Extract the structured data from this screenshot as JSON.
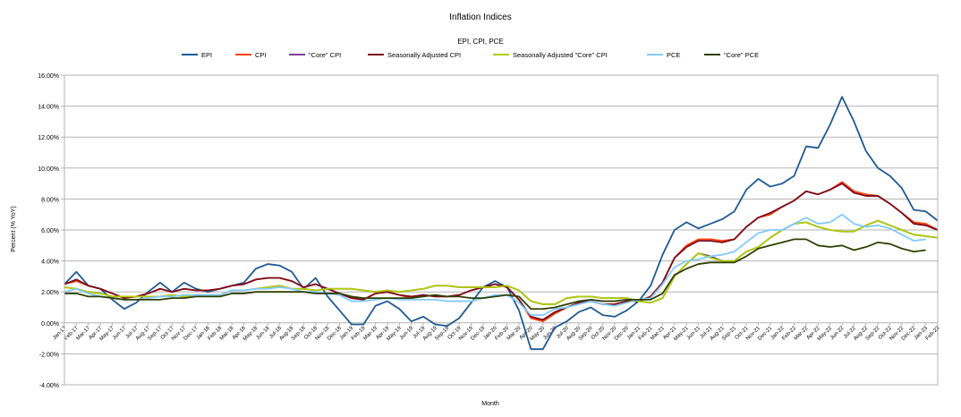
{
  "chart_data": {
    "type": "line",
    "title": "Inflation Indices",
    "subtitle": "EPI, CPI, PCE",
    "xlabel": "Month",
    "ylabel": "Percent (% YoY)",
    "ylim": [
      -4,
      16
    ],
    "yticks": [
      "-4.00%",
      "-2.00%",
      "0.00%",
      "2.00%",
      "4.00%",
      "6.00%",
      "8.00%",
      "10.00%",
      "12.00%",
      "14.00%",
      "16.00%"
    ],
    "grid": true,
    "legend_position": "top",
    "categories": [
      "Jan-17",
      "Feb-17",
      "Mar-17",
      "Apr-17",
      "May-17",
      "Jun-17",
      "Jul-17",
      "Aug-17",
      "Sep-17",
      "Oct-17",
      "Nov-17",
      "Dec-17",
      "Jan-18",
      "Feb-18",
      "Mar-18",
      "Apr-18",
      "May-18",
      "Jun-18",
      "Jul-18",
      "Aug-18",
      "Sep-18",
      "Oct-18",
      "Nov-18",
      "Dec-18",
      "Jan-19",
      "Feb-19",
      "Mar-19",
      "Apr-19",
      "May-19",
      "Jun-19",
      "Jul-19",
      "Aug-19",
      "Sep-19",
      "Oct-19",
      "Nov-19",
      "Dec-19",
      "Jan-20",
      "Feb-20",
      "Mar-20",
      "Apr-20",
      "May-20",
      "Jun-20",
      "Jul-20",
      "Aug-20",
      "Sep-20",
      "Oct-20",
      "Nov-20",
      "Dec-20",
      "Jan-21",
      "Feb-21",
      "Mar-21",
      "Apr-21",
      "May-21",
      "Jun-21",
      "Jul-21",
      "Aug-21",
      "Sep-21",
      "Oct-21",
      "Nov-21",
      "Dec-21",
      "Jan-22",
      "Feb-22",
      "Mar-22",
      "Apr-22",
      "May-22",
      "Jun-22",
      "Jul-22",
      "Aug-22",
      "Sep-22",
      "Oct-22",
      "Nov-22",
      "Dec-22",
      "Jan-23",
      "Feb-23"
    ],
    "x_tick_labels": [
      "Jan-17",
      "Feb-17",
      "Mar-17",
      "Apr-17",
      "May-17",
      "Jun-17",
      "Jul-17",
      "Aug-17",
      "Sep-17",
      "Oct-17",
      "Nov-17",
      "Dec-17",
      "Jan-18",
      "Feb-18",
      "Mar-18",
      "Apr-18",
      "May-18",
      "Jun-18",
      "Jul-18",
      "Aug-18",
      "Sep-18",
      "Oct-18",
      "Nov-18",
      "Dec-18",
      "Jan-19",
      "Feb-19",
      "Mar-19",
      "Apr-19",
      "May-19",
      "Jun-19",
      "Jul-19",
      "Aug-19",
      "Sep-19",
      "Oct-19",
      "Nov-19",
      "Dec-19",
      "Jan-20",
      "Feb-20",
      "Mar-20",
      "Apr-20",
      "May-20",
      "Jun-20",
      "Jul-20",
      "Aug-20",
      "Sep-20",
      "Oct-20",
      "Nov-20",
      "Dec-20",
      "Jan-21",
      "Feb-21",
      "Mar-21",
      "Apr-21",
      "May-21",
      "Jun-21",
      "Jul-21",
      "Aug-21",
      "Sep-21",
      "Oct-21",
      "Nov-21",
      "Dec-21",
      "Jan-22",
      "Feb-22",
      "Mar-22",
      "Apr-22",
      "May-22",
      "Jun-22",
      "Jul-22",
      "Aug-22",
      "Sep-22",
      "Oct-22",
      "Nov-22",
      "Dec-22",
      "Jan-23",
      "Feb-23"
    ],
    "series": [
      {
        "name": "EPI",
        "color": "#1f5a96",
        "values": [
          2.5,
          3.3,
          2.4,
          2.2,
          1.5,
          0.9,
          1.3,
          2.0,
          2.6,
          2.0,
          2.6,
          2.2,
          2.0,
          2.2,
          2.4,
          2.6,
          3.5,
          3.8,
          3.7,
          3.3,
          2.2,
          2.9,
          1.7,
          0.8,
          -0.1,
          -0.1,
          1.1,
          1.4,
          0.9,
          0.1,
          0.4,
          -0.1,
          -0.2,
          0.3,
          1.3,
          2.3,
          2.7,
          2.3,
          0.8,
          -1.7,
          -1.7,
          -0.3,
          0.1,
          0.7,
          1.0,
          0.5,
          0.4,
          0.8,
          1.4,
          2.4,
          4.4,
          6.0,
          6.5,
          6.1,
          6.4,
          6.7,
          7.2,
          8.6,
          9.3,
          8.8,
          9.0,
          9.5,
          11.4,
          11.3,
          12.8,
          14.6,
          13.0,
          11.1,
          10.0,
          9.5,
          8.7,
          7.3,
          7.2,
          6.6
        ]
      },
      {
        "name": "CPI",
        "color": "#ff420e",
        "values": [
          2.5,
          2.7,
          2.4,
          2.2,
          1.9,
          1.6,
          1.7,
          1.9,
          2.2,
          2.0,
          2.2,
          2.1,
          2.1,
          2.2,
          2.4,
          2.5,
          2.8,
          2.9,
          2.9,
          2.7,
          2.3,
          2.5,
          2.2,
          1.9,
          1.6,
          1.5,
          1.9,
          2.0,
          1.8,
          1.6,
          1.8,
          1.7,
          1.7,
          1.8,
          2.1,
          2.3,
          2.5,
          2.3,
          1.5,
          0.3,
          0.1,
          0.6,
          1.0,
          1.3,
          1.4,
          1.2,
          1.2,
          1.4,
          1.4,
          1.7,
          2.6,
          4.2,
          5.0,
          5.4,
          5.4,
          5.3,
          5.4,
          6.2,
          6.8,
          7.0,
          7.5,
          7.9,
          8.5,
          8.3,
          8.6,
          9.1,
          8.5,
          8.3,
          8.2,
          7.7,
          7.1,
          6.5,
          6.4,
          6.0
        ]
      },
      {
        "name": "\"Core\" CPI",
        "color": "#7e3f98",
        "values": [
          2.3,
          2.2,
          2.0,
          1.9,
          1.7,
          1.7,
          1.7,
          1.7,
          1.7,
          1.8,
          1.7,
          1.8,
          1.8,
          1.8,
          2.1,
          2.1,
          2.2,
          2.3,
          2.4,
          2.2,
          2.2,
          2.1,
          2.2,
          2.2,
          2.2,
          2.1,
          2.0,
          2.1,
          2.0,
          2.1,
          2.2,
          2.4,
          2.4,
          2.3,
          2.3,
          2.3,
          2.3,
          2.4,
          2.1,
          1.4,
          1.2,
          1.2,
          1.6,
          1.7,
          1.7,
          1.6,
          1.6,
          1.6,
          1.4,
          1.3,
          1.6,
          3.0,
          3.8,
          4.5,
          4.3,
          4.0,
          4.0,
          4.6,
          4.9,
          5.5,
          6.0,
          6.4,
          6.5,
          6.2,
          6.0,
          5.9,
          5.9,
          6.3,
          6.6,
          6.3,
          6.0,
          5.7,
          5.6,
          5.5
        ]
      },
      {
        "name": "Seasonally Adjusted CPI",
        "color": "#7b0c1b",
        "values": [
          2.5,
          2.8,
          2.4,
          2.2,
          1.9,
          1.6,
          1.7,
          1.9,
          2.2,
          2.0,
          2.2,
          2.1,
          2.1,
          2.2,
          2.4,
          2.5,
          2.8,
          2.9,
          2.9,
          2.7,
          2.3,
          2.5,
          2.2,
          1.9,
          1.6,
          1.5,
          1.9,
          2.0,
          1.8,
          1.7,
          1.8,
          1.7,
          1.7,
          1.8,
          2.1,
          2.3,
          2.5,
          2.3,
          1.5,
          0.4,
          0.2,
          0.7,
          1.0,
          1.3,
          1.4,
          1.2,
          1.2,
          1.4,
          1.4,
          1.7,
          2.6,
          4.2,
          4.9,
          5.3,
          5.3,
          5.2,
          5.4,
          6.2,
          6.8,
          7.1,
          7.5,
          7.9,
          8.5,
          8.3,
          8.6,
          9.0,
          8.4,
          8.2,
          8.2,
          7.7,
          7.1,
          6.4,
          6.3,
          6.0
        ]
      },
      {
        "name": "Seasonally Adjusted \"Core\" CPI",
        "color": "#aecf00",
        "values": [
          2.3,
          2.2,
          2.0,
          1.9,
          1.7,
          1.7,
          1.7,
          1.7,
          1.7,
          1.8,
          1.7,
          1.8,
          1.8,
          1.8,
          2.1,
          2.1,
          2.2,
          2.3,
          2.4,
          2.2,
          2.2,
          2.1,
          2.2,
          2.2,
          2.2,
          2.1,
          2.0,
          2.1,
          2.0,
          2.1,
          2.2,
          2.4,
          2.4,
          2.3,
          2.3,
          2.3,
          2.3,
          2.4,
          2.1,
          1.4,
          1.2,
          1.2,
          1.6,
          1.7,
          1.7,
          1.6,
          1.6,
          1.6,
          1.4,
          1.3,
          1.6,
          3.0,
          3.8,
          4.5,
          4.2,
          4.0,
          4.0,
          4.6,
          4.9,
          5.5,
          6.0,
          6.4,
          6.5,
          6.2,
          6.0,
          5.9,
          5.9,
          6.3,
          6.6,
          6.3,
          6.0,
          5.7,
          5.6,
          5.5
        ]
      },
      {
        "name": "PCE",
        "color": "#83caff",
        "values": [
          2.0,
          2.2,
          1.9,
          1.7,
          1.6,
          1.5,
          1.5,
          1.6,
          1.7,
          1.7,
          1.8,
          1.8,
          1.8,
          1.8,
          2.1,
          2.1,
          2.2,
          2.2,
          2.3,
          2.2,
          2.0,
          2.0,
          1.9,
          1.8,
          1.4,
          1.4,
          1.5,
          1.6,
          1.5,
          1.5,
          1.5,
          1.5,
          1.4,
          1.4,
          1.4,
          1.6,
          1.8,
          1.8,
          1.3,
          0.5,
          0.5,
          0.9,
          1.0,
          1.2,
          1.4,
          1.2,
          1.1,
          1.3,
          1.5,
          1.6,
          2.5,
          3.6,
          4.0,
          4.1,
          4.3,
          4.4,
          4.6,
          5.2,
          5.8,
          6.0,
          6.0,
          6.4,
          6.8,
          6.4,
          6.5,
          7.0,
          6.4,
          6.2,
          6.3,
          6.1,
          5.7,
          5.3,
          5.4,
          null
        ]
      },
      {
        "name": "\"Core\" PCE",
        "color": "#314004",
        "values": [
          1.9,
          1.9,
          1.7,
          1.7,
          1.6,
          1.5,
          1.5,
          1.5,
          1.5,
          1.6,
          1.6,
          1.7,
          1.7,
          1.7,
          1.9,
          1.9,
          2.0,
          2.0,
          2.0,
          2.0,
          2.0,
          1.9,
          1.9,
          1.9,
          1.7,
          1.6,
          1.6,
          1.6,
          1.6,
          1.6,
          1.7,
          1.8,
          1.7,
          1.7,
          1.6,
          1.6,
          1.7,
          1.8,
          1.7,
          0.9,
          0.9,
          1.0,
          1.2,
          1.4,
          1.5,
          1.4,
          1.4,
          1.5,
          1.5,
          1.5,
          1.9,
          3.1,
          3.5,
          3.8,
          3.9,
          3.9,
          3.9,
          4.3,
          4.8,
          5.0,
          5.2,
          5.4,
          5.4,
          5.0,
          4.9,
          5.0,
          4.7,
          4.9,
          5.2,
          5.1,
          4.8,
          4.6,
          4.7,
          null
        ]
      }
    ]
  }
}
